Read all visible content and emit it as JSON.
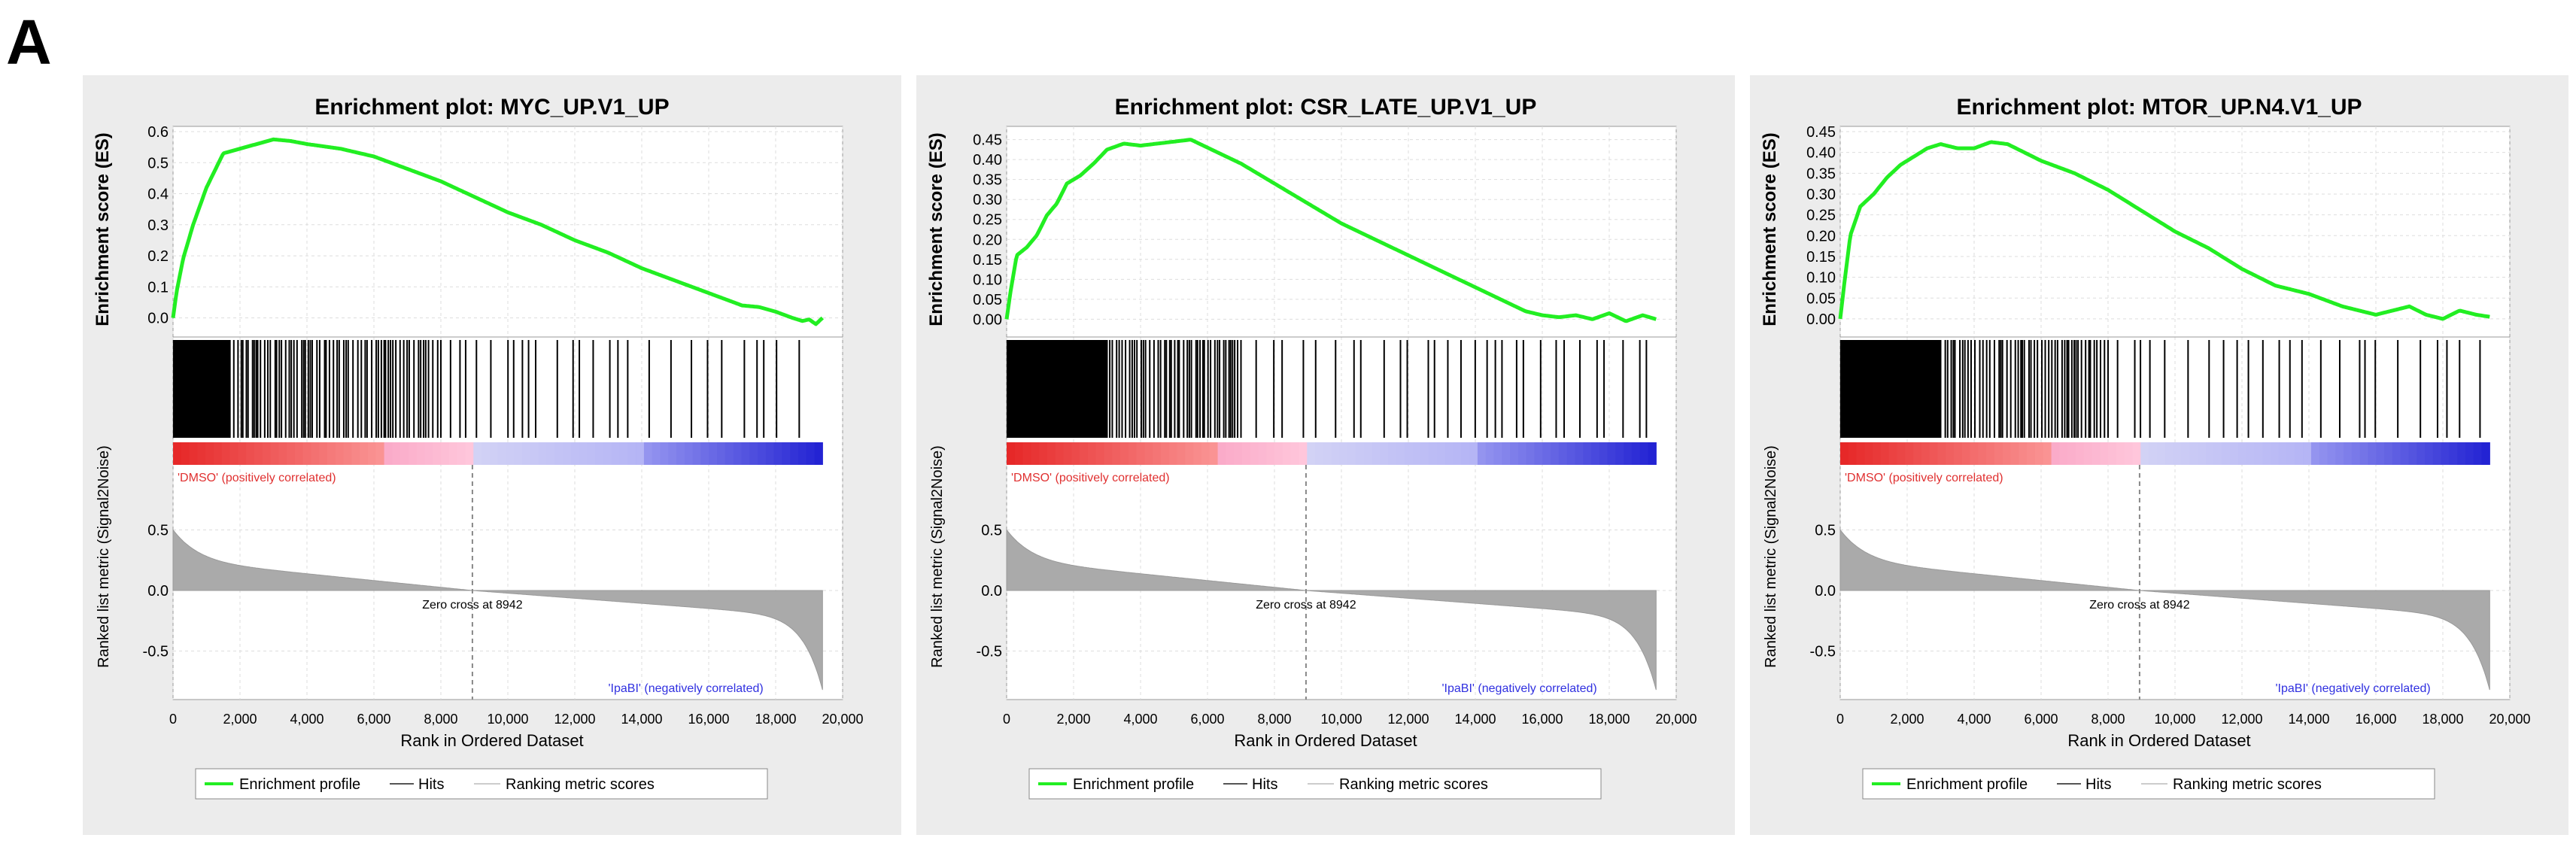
{
  "panel_label": "A",
  "colors": {
    "es_line": "#22ee22",
    "hits": "#000000",
    "metric": "#aaaaaa",
    "pos_text": "#e03030",
    "neg_text": "#3030e0"
  },
  "chart_data": [
    {
      "type": "line",
      "title": "Enrichment plot: MYC_UP.V1_UP",
      "ylabel_es": "Enrichment score (ES)",
      "ylabel_metric": "Ranked list metric (Signal2Noise)",
      "xlabel": "Rank in Ordered Dataset",
      "xlim": [
        0,
        20000
      ],
      "x_ticks": [
        "0",
        "2,000",
        "4,000",
        "6,000",
        "8,000",
        "10,000",
        "12,000",
        "14,000",
        "16,000",
        "18,000",
        "20,000"
      ],
      "es_ylim": [
        -0.03,
        0.6
      ],
      "es_ticks": [
        "0.0",
        "0.1",
        "0.2",
        "0.3",
        "0.4",
        "0.5",
        "0.6"
      ],
      "metric_ylim": [
        -0.9,
        0.9
      ],
      "metric_ticks": [
        "0.5",
        "0.0",
        "-0.5"
      ],
      "pos_label": "'DMSO' (positively correlated)",
      "neg_label": "'IpaBI' (negatively correlated)",
      "zero_cross_label": "Zero cross at 8942",
      "zero_cross": 8942,
      "dataset_size": 19400,
      "hits_dense_until": 1700,
      "hits_mid_until": 8000,
      "es_curve": {
        "x": [
          0,
          100,
          300,
          600,
          1000,
          1500,
          2000,
          2500,
          3000,
          3500,
          4000,
          5000,
          6000,
          7000,
          8000,
          9000,
          10000,
          11000,
          12000,
          13000,
          14000,
          15000,
          16000,
          17000,
          17500,
          18000,
          18500,
          18800,
          19000,
          19200,
          19400
        ],
        "y": [
          0,
          0.08,
          0.19,
          0.3,
          0.42,
          0.53,
          0.545,
          0.56,
          0.575,
          0.57,
          0.56,
          0.545,
          0.52,
          0.48,
          0.44,
          0.39,
          0.34,
          0.3,
          0.25,
          0.21,
          0.16,
          0.12,
          0.08,
          0.04,
          0.035,
          0.02,
          0.0,
          -0.01,
          -0.005,
          -0.02,
          0.0
        ]
      },
      "legend": [
        "Enrichment profile",
        "Hits",
        "Ranking metric scores"
      ]
    },
    {
      "type": "line",
      "title": "Enrichment plot: CSR_LATE_UP.V1_UP",
      "ylabel_es": "Enrichment score (ES)",
      "ylabel_metric": "Ranked list metric (Signal2Noise)",
      "xlabel": "Rank in Ordered Dataset",
      "xlim": [
        0,
        20000
      ],
      "x_ticks": [
        "0",
        "2,000",
        "4,000",
        "6,000",
        "8,000",
        "10,000",
        "12,000",
        "14,000",
        "16,000",
        "18,000",
        "20,000"
      ],
      "es_ylim": [
        -0.02,
        0.47
      ],
      "es_ticks": [
        "0.00",
        "0.05",
        "0.10",
        "0.15",
        "0.20",
        "0.25",
        "0.30",
        "0.35",
        "0.40",
        "0.45"
      ],
      "metric_ylim": [
        -0.9,
        0.9
      ],
      "metric_ticks": [
        "0.5",
        "0.0",
        "-0.5"
      ],
      "pos_label": "'DMSO' (positively correlated)",
      "neg_label": "'IpaBI' (negatively correlated)",
      "zero_cross_label": "Zero cross at 8942",
      "zero_cross": 8942,
      "dataset_size": 19400,
      "hits_dense_until": 3000,
      "hits_mid_until": 7000,
      "es_curve": {
        "x": [
          0,
          100,
          300,
          600,
          900,
          1200,
          1500,
          1800,
          2200,
          2600,
          3000,
          3500,
          4000,
          4500,
          5000,
          5500,
          6000,
          7000,
          8000,
          9000,
          10000,
          11000,
          12000,
          13000,
          14000,
          15000,
          15500,
          16000,
          16500,
          17000,
          17500,
          18000,
          18500,
          19000,
          19400
        ],
        "y": [
          0,
          0.06,
          0.16,
          0.18,
          0.21,
          0.26,
          0.29,
          0.34,
          0.36,
          0.39,
          0.425,
          0.44,
          0.435,
          0.44,
          0.445,
          0.45,
          0.43,
          0.39,
          0.34,
          0.29,
          0.24,
          0.2,
          0.16,
          0.12,
          0.08,
          0.04,
          0.02,
          0.01,
          0.005,
          0.01,
          0.0,
          0.015,
          -0.005,
          0.01,
          0.0
        ]
      },
      "legend": [
        "Enrichment profile",
        "Hits",
        "Ranking metric scores"
      ]
    },
    {
      "type": "line",
      "title": "Enrichment plot: MTOR_UP.N4.V1_UP",
      "ylabel_es": "Enrichment score (ES)",
      "ylabel_metric": "Ranked list metric (Signal2Noise)",
      "xlabel": "Rank in Ordered Dataset",
      "xlim": [
        0,
        20000
      ],
      "x_ticks": [
        "0",
        "2,000",
        "4,000",
        "6,000",
        "8,000",
        "10,000",
        "12,000",
        "14,000",
        "16,000",
        "18,000",
        "20,000"
      ],
      "es_ylim": [
        -0.02,
        0.45
      ],
      "es_ticks": [
        "0.00",
        "0.05",
        "0.10",
        "0.15",
        "0.20",
        "0.25",
        "0.30",
        "0.35",
        "0.40",
        "0.45"
      ],
      "metric_ylim": [
        -0.9,
        0.9
      ],
      "metric_ticks": [
        "0.5",
        "0.0",
        "-0.5"
      ],
      "pos_label": "'DMSO' (positively correlated)",
      "neg_label": "'IpaBI' (negatively correlated)",
      "zero_cross_label": "Zero cross at 8942",
      "zero_cross": 8942,
      "dataset_size": 19400,
      "hits_dense_until": 3000,
      "hits_mid_until": 8000,
      "es_curve": {
        "x": [
          0,
          100,
          300,
          600,
          1000,
          1400,
          1800,
          2200,
          2600,
          3000,
          3500,
          4000,
          4500,
          5000,
          5500,
          6000,
          7000,
          8000,
          9000,
          10000,
          11000,
          12000,
          13000,
          14000,
          15000,
          15500,
          16000,
          16500,
          17000,
          17500,
          18000,
          18500,
          19000,
          19400
        ],
        "y": [
          0,
          0.07,
          0.2,
          0.27,
          0.3,
          0.34,
          0.37,
          0.39,
          0.41,
          0.42,
          0.41,
          0.41,
          0.425,
          0.42,
          0.4,
          0.38,
          0.35,
          0.31,
          0.26,
          0.21,
          0.17,
          0.12,
          0.08,
          0.06,
          0.03,
          0.02,
          0.01,
          0.02,
          0.03,
          0.01,
          0.0,
          0.02,
          0.01,
          0.005
        ]
      },
      "legend": [
        "Enrichment profile",
        "Hits",
        "Ranking metric scores"
      ]
    }
  ]
}
